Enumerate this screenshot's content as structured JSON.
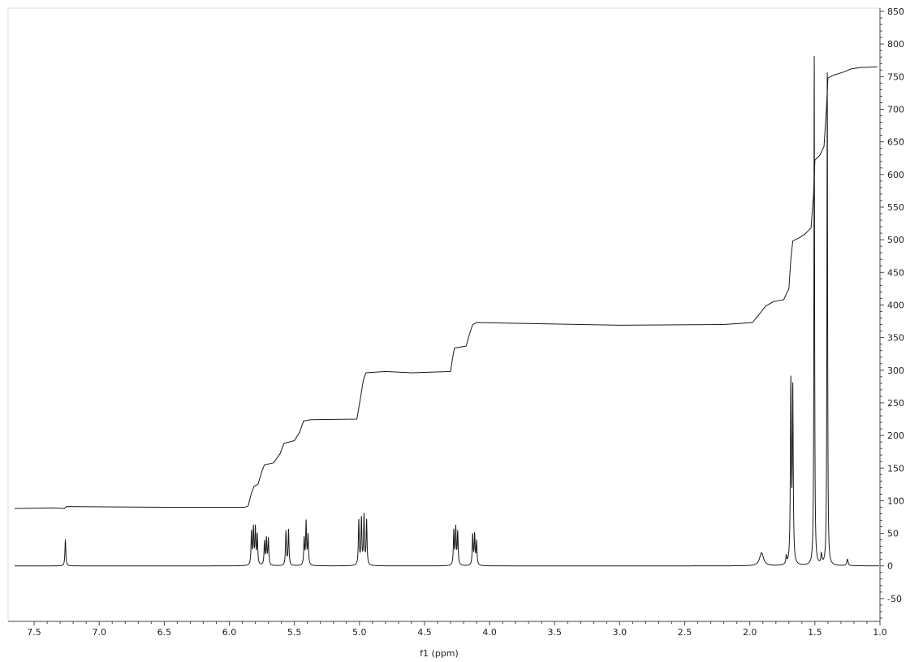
{
  "chart_data": {
    "type": "line",
    "title": "",
    "xlabel": "f1 (ppm)",
    "ylabel": "",
    "xlim": [
      7.7,
      1.0
    ],
    "ylim": [
      -85,
      855
    ],
    "x_reversed": true,
    "x_ticks": [
      "7.5",
      "7.0",
      "6.5",
      "6.0",
      "5.5",
      "5.0",
      "4.5",
      "4.0",
      "3.5",
      "3.0",
      "2.5",
      "2.0",
      "1.5",
      "1.0"
    ],
    "y_ticks": [
      "850",
      "800",
      "750",
      "700",
      "650",
      "600",
      "550",
      "500",
      "450",
      "400",
      "350",
      "300",
      "250",
      "200",
      "150",
      "100",
      "50",
      "0",
      "-50"
    ],
    "y_axis_side": "right",
    "grid": false,
    "line_color": "#1a1a1a",
    "series": [
      {
        "kind": "spectrum",
        "baseline": 0,
        "peaks": [
          {
            "ppm": 7.26,
            "height": 40,
            "width": 0.004
          },
          {
            "ppm": 5.83,
            "height": 50,
            "width": 0.004
          },
          {
            "ppm": 5.815,
            "height": 55,
            "width": 0.004
          },
          {
            "ppm": 5.8,
            "height": 55,
            "width": 0.004
          },
          {
            "ppm": 5.785,
            "height": 45,
            "width": 0.004
          },
          {
            "ppm": 5.73,
            "height": 35,
            "width": 0.004
          },
          {
            "ppm": 5.715,
            "height": 40,
            "width": 0.004
          },
          {
            "ppm": 5.7,
            "height": 40,
            "width": 0.004
          },
          {
            "ppm": 5.565,
            "height": 52,
            "width": 0.004
          },
          {
            "ppm": 5.545,
            "height": 54,
            "width": 0.004
          },
          {
            "ppm": 5.425,
            "height": 40,
            "width": 0.004
          },
          {
            "ppm": 5.41,
            "height": 65,
            "width": 0.004
          },
          {
            "ppm": 5.395,
            "height": 45,
            "width": 0.004
          },
          {
            "ppm": 5.005,
            "height": 68,
            "width": 0.004
          },
          {
            "ppm": 4.985,
            "height": 70,
            "width": 0.004
          },
          {
            "ppm": 4.965,
            "height": 75,
            "width": 0.004
          },
          {
            "ppm": 4.945,
            "height": 68,
            "width": 0.004
          },
          {
            "ppm": 4.275,
            "height": 52,
            "width": 0.004
          },
          {
            "ppm": 4.26,
            "height": 56,
            "width": 0.004
          },
          {
            "ppm": 4.245,
            "height": 50,
            "width": 0.004
          },
          {
            "ppm": 4.13,
            "height": 46,
            "width": 0.004
          },
          {
            "ppm": 4.115,
            "height": 46,
            "width": 0.004
          },
          {
            "ppm": 4.1,
            "height": 36,
            "width": 0.004
          },
          {
            "ppm": 1.91,
            "height": 20,
            "width": 0.018
          },
          {
            "ppm": 1.72,
            "height": 12,
            "width": 0.004
          },
          {
            "ppm": 1.685,
            "height": 273,
            "width": 0.004
          },
          {
            "ppm": 1.67,
            "height": 262,
            "width": 0.004
          },
          {
            "ppm": 1.505,
            "height": 780,
            "width": 0.003
          },
          {
            "ppm": 1.45,
            "height": 15,
            "width": 0.005
          },
          {
            "ppm": 1.405,
            "height": 755,
            "width": 0.003
          },
          {
            "ppm": 1.25,
            "height": 10,
            "width": 0.006
          }
        ]
      },
      {
        "kind": "integral",
        "points": [
          [
            7.65,
            88
          ],
          [
            7.35,
            89
          ],
          [
            7.27,
            88
          ],
          [
            7.25,
            91
          ],
          [
            6.5,
            90
          ],
          [
            5.88,
            90
          ],
          [
            5.855,
            92
          ],
          [
            5.83,
            112
          ],
          [
            5.81,
            122
          ],
          [
            5.78,
            125
          ],
          [
            5.75,
            145
          ],
          [
            5.73,
            155
          ],
          [
            5.66,
            158
          ],
          [
            5.61,
            172
          ],
          [
            5.58,
            188
          ],
          [
            5.5,
            192
          ],
          [
            5.46,
            205
          ],
          [
            5.43,
            222
          ],
          [
            5.38,
            224
          ],
          [
            5.02,
            225
          ],
          [
            4.99,
            260
          ],
          [
            4.97,
            285
          ],
          [
            4.95,
            296
          ],
          [
            4.8,
            298
          ],
          [
            4.6,
            296
          ],
          [
            4.3,
            298
          ],
          [
            4.285,
            318
          ],
          [
            4.27,
            334
          ],
          [
            4.18,
            337
          ],
          [
            4.155,
            355
          ],
          [
            4.13,
            370
          ],
          [
            4.1,
            373
          ],
          [
            3.8,
            372
          ],
          [
            3.0,
            369
          ],
          [
            2.2,
            370
          ],
          [
            1.98,
            373
          ],
          [
            1.93,
            385
          ],
          [
            1.88,
            398
          ],
          [
            1.82,
            405
          ],
          [
            1.74,
            408
          ],
          [
            1.7,
            425
          ],
          [
            1.685,
            470
          ],
          [
            1.67,
            498
          ],
          [
            1.62,
            503
          ],
          [
            1.58,
            508
          ],
          [
            1.53,
            518
          ],
          [
            1.51,
            570
          ],
          [
            1.5,
            622
          ],
          [
            1.46,
            630
          ],
          [
            1.43,
            643
          ],
          [
            1.41,
            705
          ],
          [
            1.4,
            748
          ],
          [
            1.36,
            752
          ],
          [
            1.28,
            757
          ],
          [
            1.22,
            762
          ],
          [
            1.15,
            764
          ],
          [
            1.02,
            765
          ]
        ]
      }
    ]
  }
}
